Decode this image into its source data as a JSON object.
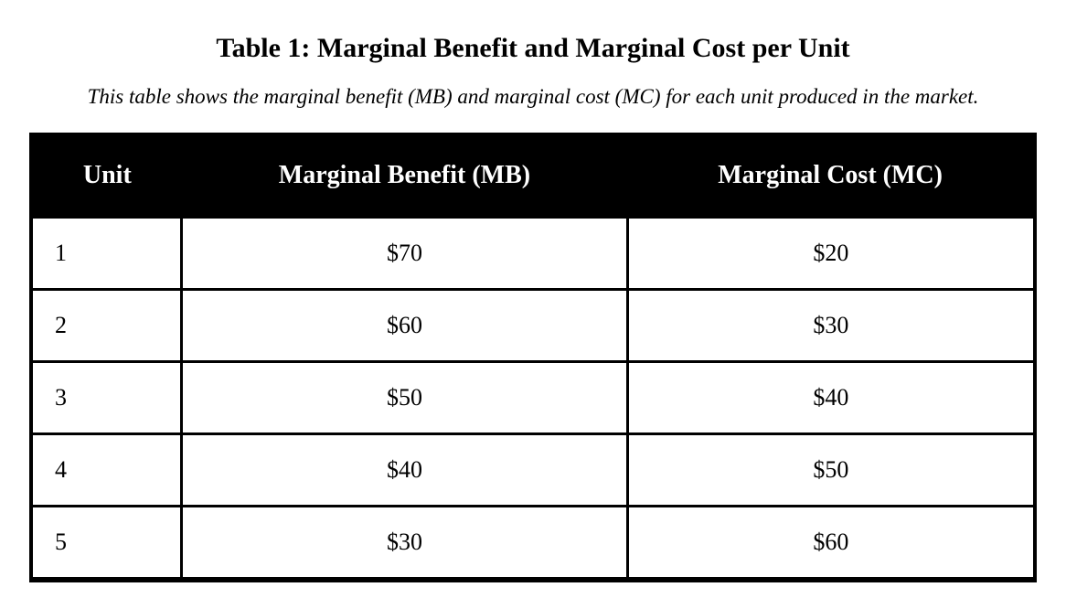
{
  "document": {
    "title": "Table 1: Marginal Benefit and Marginal Cost per Unit",
    "subtitle": "This table shows the marginal benefit (MB) and marginal cost (MC) for each unit produced in the market."
  },
  "table": {
    "headers": [
      "Unit",
      "Marginal Benefit (MB)",
      "Marginal Cost (MC)"
    ],
    "rows": [
      [
        "1",
        "$70",
        "$20"
      ],
      [
        "2",
        "$60",
        "$30"
      ],
      [
        "3",
        "$50",
        "$40"
      ],
      [
        "4",
        "$40",
        "$50"
      ],
      [
        "5",
        "$30",
        "$60"
      ]
    ]
  },
  "colors": {
    "page_background": "#ffffff",
    "header_background": "#000000",
    "header_text": "#ffffff",
    "body_text": "#000000",
    "border": "#000000"
  }
}
